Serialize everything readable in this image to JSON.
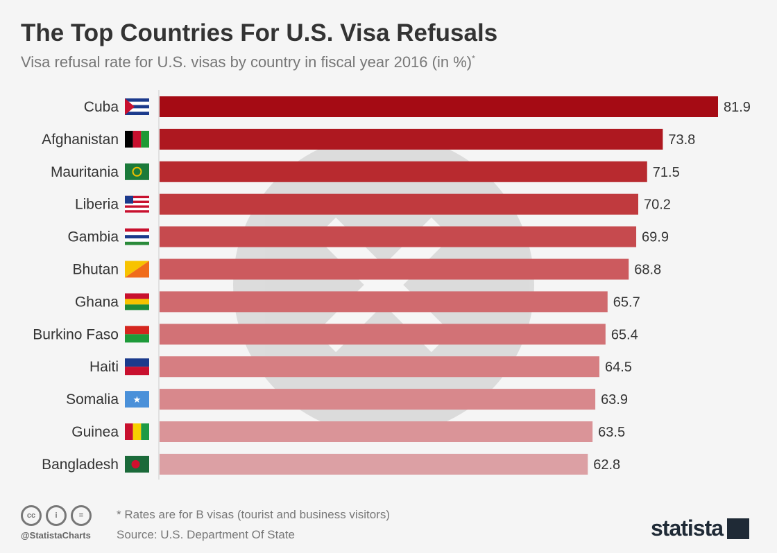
{
  "chart_data": {
    "type": "bar",
    "orientation": "horizontal",
    "title": "The Top Countries For U.S. Visa Refusals",
    "subtitle": "Visa refusal rate for U.S. visas by country in fiscal year 2016 (in %)",
    "subtitle_marker": "*",
    "categories": [
      "Cuba",
      "Afghanistan",
      "Mauritania",
      "Liberia",
      "Gambia",
      "Bhutan",
      "Ghana",
      "Burkino Faso",
      "Haiti",
      "Somalia",
      "Guinea",
      "Bangladesh"
    ],
    "values": [
      81.9,
      73.8,
      71.5,
      70.2,
      69.9,
      68.8,
      65.7,
      65.4,
      64.5,
      63.9,
      63.5,
      62.8
    ],
    "value_labels": [
      "81.9",
      "73.8",
      "71.5",
      "70.2",
      "69.9",
      "68.8",
      "65.7",
      "65.4",
      "64.5",
      "63.9",
      "63.5",
      "62.8"
    ],
    "bar_colors": [
      "#a50b14",
      "#ae1820",
      "#b82a2f",
      "#c03a3e",
      "#c64a4e",
      "#cc5a5e",
      "#d06a6e",
      "#d27276",
      "#d67e82",
      "#d8888c",
      "#da9498",
      "#dca0a4"
    ],
    "xlim": [
      0,
      82
    ],
    "grid": false,
    "legend": "none"
  },
  "footer": {
    "note": "* Rates are for B visas (tourist and business visitors)",
    "source": "Source: U.S. Department Of State",
    "handle": "@StatistaCharts",
    "license_icons": [
      "cc",
      "i",
      "="
    ],
    "logo": "statista"
  }
}
